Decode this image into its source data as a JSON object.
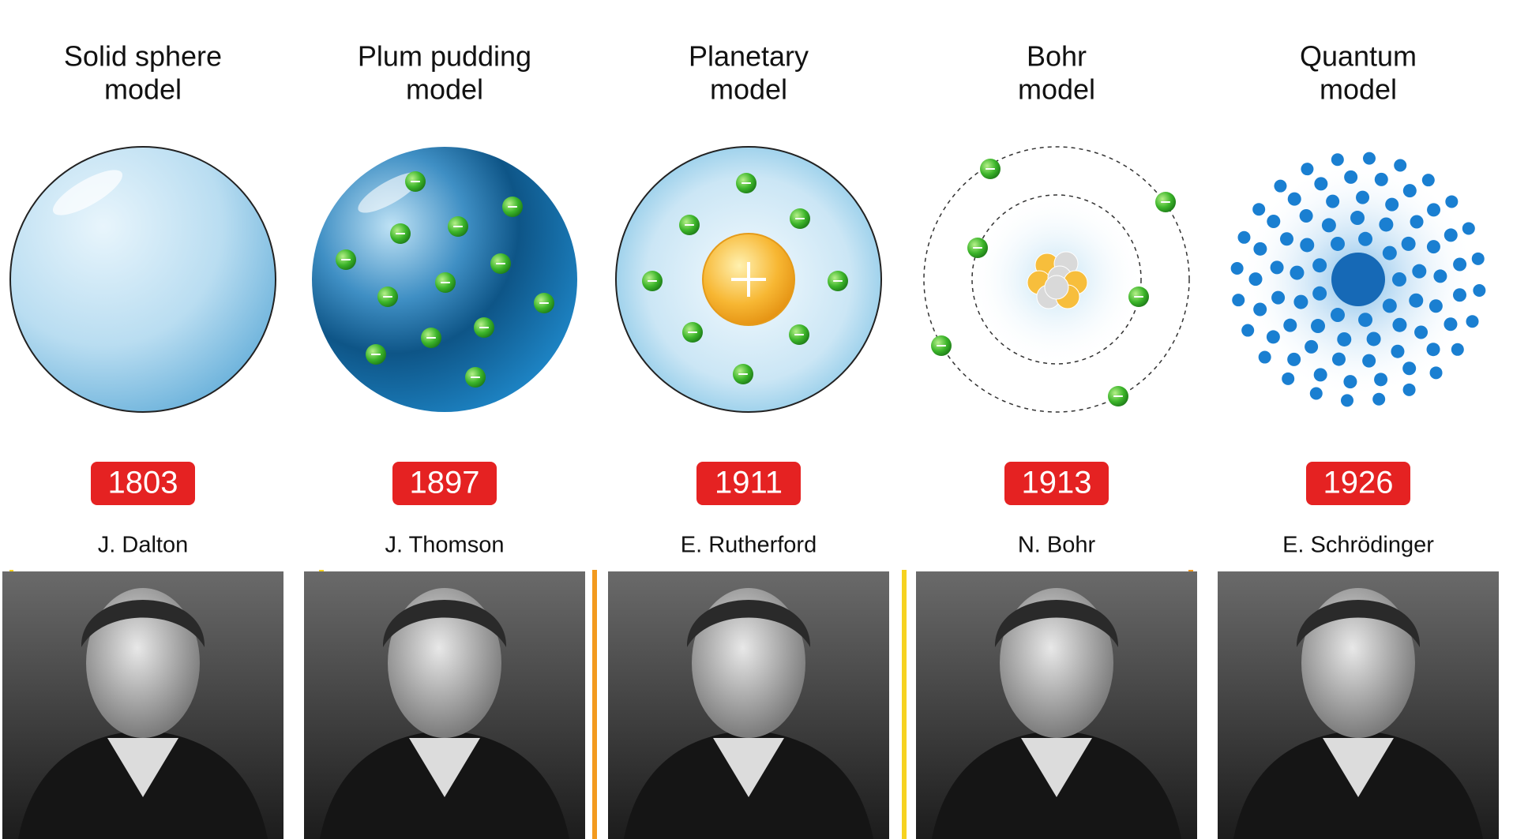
{
  "header": {},
  "models": [
    {
      "title_lines": [
        "Solid sphere",
        "model"
      ],
      "year": 1803,
      "scientist": "J. Dalton"
    },
    {
      "title_lines": [
        "Plum pudding",
        "model"
      ],
      "year": 1897,
      "scientist": "J. Thomson"
    },
    {
      "title_lines": [
        "Planetary",
        "model"
      ],
      "year": 1911,
      "scientist": "E. Rutherford"
    },
    {
      "title_lines": [
        "Bohr",
        "model"
      ],
      "year": 1913,
      "scientist": "N. Bohr"
    },
    {
      "title_lines": [
        "Quantum",
        "model"
      ],
      "year": 1926,
      "scientist": "E. Schrödinger"
    }
  ]
}
